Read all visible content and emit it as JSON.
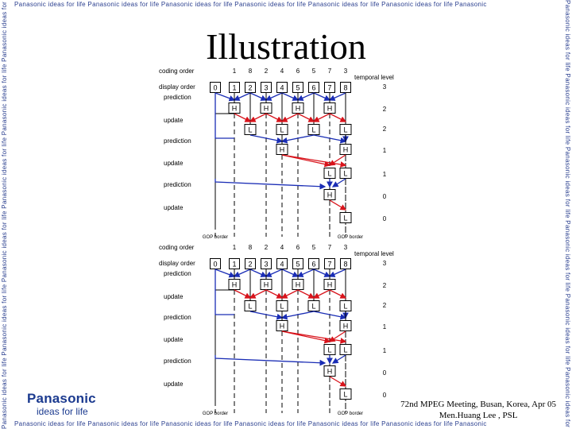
{
  "slide": {
    "title": "Illustration",
    "banner_text": "Panasonic ideas for life Panasonic ideas for life Panasonic ideas for life Panasonic ideas for life Panasonic ideas for life Panasonic ideas for life Panasonic",
    "banner_text_side": "Panasonic ideas for life Panasonic ideas for life Panasonic ideas for life Panasonic ideas for life Panasonic ideas for life Panasonic ideas for life Panasonic ideas for life",
    "logo_name": "Panasonic",
    "logo_tagline": "ideas for life",
    "footer_line1": "72nd MPEG Meeting, Busan, Korea, Apr 05",
    "footer_line2": "Men.Huang Lee , PSL"
  },
  "diagram": {
    "labels": {
      "coding_order": "coding order",
      "display_order": "display order",
      "prediction": "prediction",
      "update": "update",
      "temporal_level": "temporal level",
      "gop_border": "GOP border"
    },
    "coding_order": [
      "1",
      "8",
      "2",
      "4",
      "6",
      "5",
      "7",
      "3"
    ],
    "display_order": [
      "0",
      "1",
      "2",
      "3",
      "4",
      "5",
      "6",
      "7",
      "8"
    ],
    "temporal_levels": [
      "3",
      "2",
      "2",
      "1",
      "1",
      "0",
      "0"
    ],
    "nodes": {
      "high": "H",
      "low": "L"
    },
    "colors": {
      "prediction_arrows": "#1a2db5",
      "update_arrows": "#d8131b",
      "lines": "#000000",
      "brand": "#1b3a8f"
    }
  }
}
